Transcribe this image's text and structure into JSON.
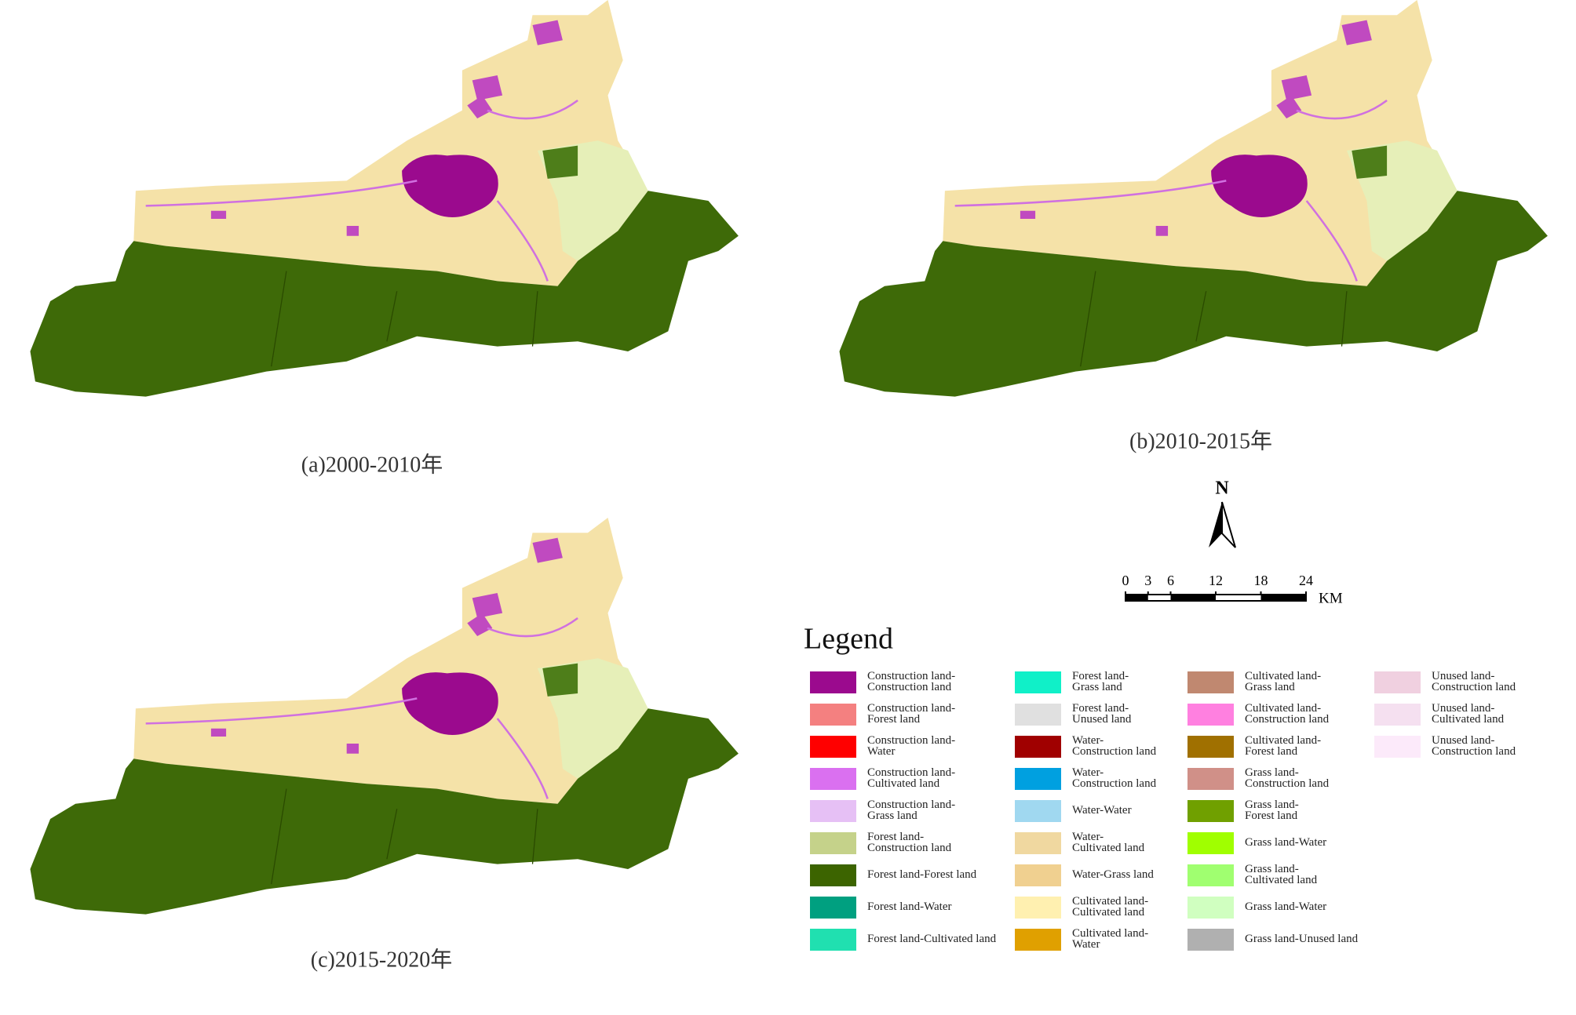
{
  "captions": [
    "(a)2000-2010年",
    "(b)2010-2015年",
    "(c)2015-2020年"
  ],
  "north": "N",
  "scale_bar": {
    "ticks": [
      0,
      3,
      6,
      12,
      18,
      24
    ],
    "unit": "KM"
  },
  "legend": {
    "title": "Legend",
    "columns": [
      [
        {
          "label": [
            "Construction land-",
            "Construction land"
          ],
          "color": "#9b0a8e"
        },
        {
          "label": [
            "Construction land-",
            "Forest land"
          ],
          "color": "#f48080"
        },
        {
          "label": [
            "Construction land-",
            "Water"
          ],
          "color": "#ff0000"
        },
        {
          "label": [
            "Construction land-",
            "Cultivated land"
          ],
          "color": "#da70f0"
        },
        {
          "label": [
            "Construction land-",
            "Grass land"
          ],
          "color": "#e6c0f5"
        },
        {
          "label": [
            "Forest land-",
            "Construction land"
          ],
          "color": "#c5d28a"
        },
        {
          "label": [
            "Forest land-Forest land"
          ],
          "color": "#3c6400"
        },
        {
          "label": [
            "Forest land-Water"
          ],
          "color": "#00a080"
        },
        {
          "label": [
            "Forest land-Cultivated land"
          ],
          "color": "#20e0b0"
        }
      ],
      [
        {
          "label": [
            "Forest land-",
            "Grass land"
          ],
          "color": "#10f0c8"
        },
        {
          "label": [
            "Forest land-",
            "Unused land"
          ],
          "color": "#e0e0e0"
        },
        {
          "label": [
            "Water-",
            "Construction land"
          ],
          "color": "#a00000"
        },
        {
          "label": [
            "Water-",
            "Construction land"
          ],
          "color": "#00a0e0"
        },
        {
          "label": [
            "Water-Water"
          ],
          "color": "#a0d8f0"
        },
        {
          "label": [
            "Water-",
            "Cultivated land"
          ],
          "color": "#f0d8a0"
        },
        {
          "label": [
            "Water-Grass land"
          ],
          "color": "#f0d090"
        },
        {
          "label": [
            "Cultivated land-",
            "Cultivated land"
          ],
          "color": "#fff0b0"
        },
        {
          "label": [
            "Cultivated land-",
            "Water"
          ],
          "color": "#e0a000"
        }
      ],
      [
        {
          "label": [
            "Cultivated land-",
            "Grass land"
          ],
          "color": "#c08870"
        },
        {
          "label": [
            "Cultivated land-",
            "Construction land"
          ],
          "color": "#ff80e0"
        },
        {
          "label": [
            "Cultivated land-",
            "Forest land"
          ],
          "color": "#a07000"
        },
        {
          "label": [
            "Grass land-",
            "Construction land"
          ],
          "color": "#d09088"
        },
        {
          "label": [
            "Grass land-",
            "Forest land"
          ],
          "color": "#70a000"
        },
        {
          "label": [
            "Grass land-Water"
          ],
          "color": "#a0ff00"
        },
        {
          "label": [
            "Grass land-",
            "Cultivated land"
          ],
          "color": "#a0ff70"
        },
        {
          "label": [
            "Grass land-Water"
          ],
          "color": "#d0ffc0"
        },
        {
          "label": [
            "Grass land-Unused land"
          ],
          "color": "#b0b0b0"
        }
      ],
      [
        {
          "label": [
            "Unused land-",
            "Construction land"
          ],
          "color": "#f0d0e0"
        },
        {
          "label": [
            "Unused land-",
            "Cultivated land"
          ],
          "color": "#f5e0f0"
        },
        {
          "label": [
            "Unused land-",
            "Construction land"
          ],
          "color": "#fceafa"
        }
      ]
    ]
  }
}
